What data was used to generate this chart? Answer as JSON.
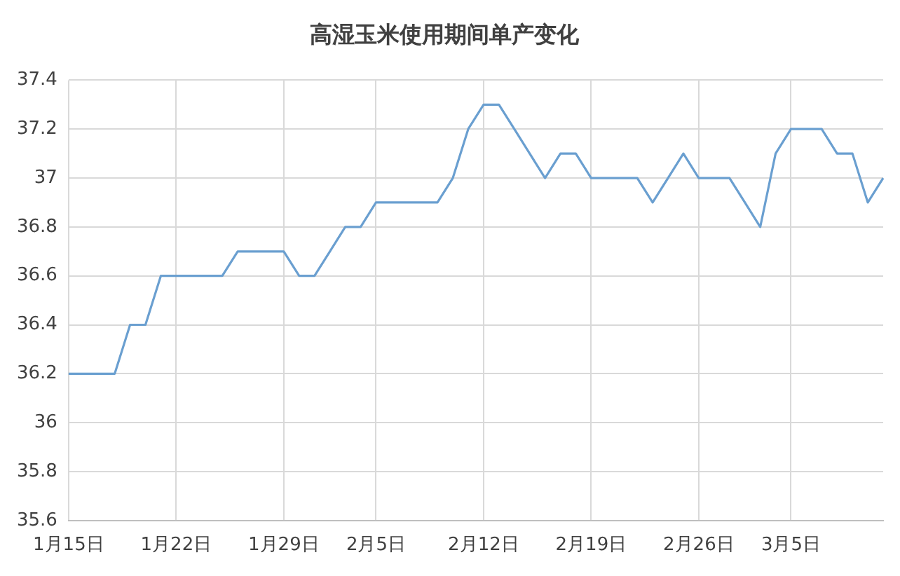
{
  "chart_data": {
    "type": "line",
    "title": "高湿玉米使用期间单产变化",
    "categories": [
      "1月15日",
      null,
      null,
      null,
      null,
      null,
      null,
      "1月22日",
      null,
      null,
      null,
      null,
      null,
      null,
      "1月29日",
      null,
      null,
      null,
      null,
      null,
      "2月5日",
      null,
      null,
      null,
      null,
      null,
      null,
      "2月12日",
      null,
      null,
      null,
      null,
      null,
      null,
      "2月19日",
      null,
      null,
      null,
      null,
      null,
      null,
      "2月26日",
      null,
      null,
      null,
      null,
      null,
      "3月5日",
      null,
      null,
      null,
      null,
      null,
      null
    ],
    "series": [
      {
        "color": "#6a9fd0",
        "values": [
          36.2,
          36.2,
          36.2,
          36.2,
          36.4,
          36.4,
          36.6,
          36.6,
          36.6,
          36.6,
          36.6,
          36.7,
          36.7,
          36.7,
          36.7,
          36.6,
          36.6,
          36.7,
          36.8,
          36.8,
          36.9,
          36.9,
          36.9,
          36.9,
          36.9,
          37.0,
          37.2,
          37.3,
          37.3,
          37.2,
          37.1,
          37.0,
          37.1,
          37.1,
          37.0,
          37.0,
          37.0,
          37.0,
          36.9,
          37.0,
          37.1,
          37.0,
          37.0,
          37.0,
          36.9,
          36.8,
          37.1,
          37.2,
          37.2,
          37.2,
          37.1,
          37.1,
          36.9,
          37.0
        ]
      }
    ],
    "ylim": [
      35.6,
      37.4
    ],
    "yticks": [
      35.6,
      35.8,
      36,
      36.2,
      36.4,
      36.6,
      36.8,
      37,
      37.2,
      37.4
    ],
    "grid": true,
    "legend": false,
    "marker": "none",
    "line_style": "solid"
  }
}
